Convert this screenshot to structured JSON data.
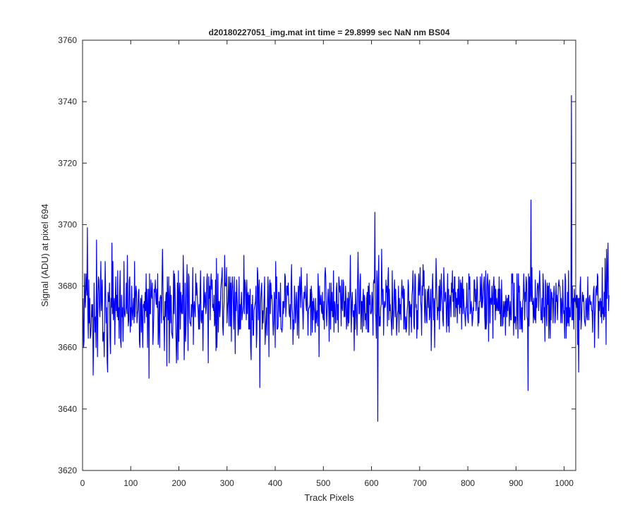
{
  "chart_data": {
    "type": "line",
    "title": "d20180227051_img.mat int time = 29.8999 sec  NaN nm BS04",
    "xlabel": "Track Pixels",
    "ylabel": "Signal (ADU) at pixel 694",
    "xlim": [
      0,
      1024
    ],
    "ylim": [
      3620,
      3760
    ],
    "xticks": [
      0,
      100,
      200,
      300,
      400,
      500,
      600,
      700,
      800,
      900,
      1000
    ],
    "yticks": [
      3620,
      3640,
      3660,
      3680,
      3700,
      3720,
      3740,
      3760
    ],
    "grid": false,
    "color": "#0000ff",
    "series": [
      {
        "x_start": 1,
        "x_step": 1,
        "values": [
          3676,
          3660,
          3662,
          3684,
          3676,
          3673,
          3684,
          3680,
          3677,
          3699,
          3671,
          3663,
          3682,
          3668,
          3676,
          3663,
          3664,
          3667,
          3674,
          3670,
          3674,
          3651,
          3662,
          3681,
          3670,
          3665,
          3670,
          3660,
          3695,
          3671,
          3657,
          3677,
          3683,
          3682,
          3673,
          3670,
          3678,
          3688,
          3672,
          3677,
          3682,
          3662,
          3663,
          3665,
          3657,
          3673,
          3688,
          3677,
          3668,
          3673,
          3656,
          3652,
          3678,
          3675,
          3675,
          3681,
          3663,
          3658,
          3676,
          3673,
          3694,
          3671,
          3688,
          3669,
          3674,
          3676,
          3661,
          3675,
          3683,
          3672,
          3677,
          3670,
          3685,
          3669,
          3673,
          3663,
          3678,
          3685,
          3662,
          3660,
          3677,
          3670,
          3673,
          3662,
          3670,
          3688,
          3671,
          3670,
          3672,
          3673,
          3681,
          3671,
          3690,
          3673,
          3667,
          3669,
          3682,
          3683,
          3665,
          3673,
          3667,
          3680,
          3672,
          3669,
          3673,
          3676,
          3668,
          3688,
          3670,
          3676,
          3680,
          3678,
          3668,
          3671,
          3672,
          3678,
          3679,
          3662,
          3660,
          3674,
          3676,
          3665,
          3677,
          3668,
          3660,
          3674,
          3673,
          3675,
          3668,
          3678,
          3672,
          3684,
          3670,
          3679,
          3660,
          3674,
          3679,
          3650,
          3684,
          3671,
          3671,
          3682,
          3677,
          3676,
          3681,
          3661,
          3665,
          3672,
          3679,
          3678,
          3682,
          3676,
          3674,
          3679,
          3673,
          3684,
          3661,
          3666,
          3675,
          3660,
          3676,
          3677,
          3676,
          3668,
          3682,
          3692,
          3680,
          3669,
          3670,
          3659,
          3675,
          3670,
          3677,
          3678,
          3654,
          3683,
          3676,
          3669,
          3683,
          3655,
          3676,
          3680,
          3668,
          3677,
          3665,
          3664,
          3663,
          3670,
          3685,
          3671,
          3684,
          3679,
          3670,
          3663,
          3655,
          3665,
          3681,
          3656,
          3685,
          3662,
          3678,
          3681,
          3666,
          3678,
          3672,
          3671,
          3677,
          3671,
          3690,
          3680,
          3656,
          3664,
          3681,
          3662,
          3668,
          3678,
          3687,
          3673,
          3659,
          3684,
          3683,
          3670,
          3668,
          3668,
          3667,
          3674,
          3670,
          3675,
          3686,
          3661,
          3673,
          3675,
          3672,
          3670,
          3684,
          3677,
          3681,
          3678,
          3674,
          3672,
          3666,
          3674,
          3666,
          3678,
          3685,
          3669,
          3668,
          3672,
          3672,
          3659,
          3672,
          3683,
          3673,
          3676,
          3678,
          3671,
          3673,
          3682,
          3684,
          3673,
          3655,
          3683,
          3676,
          3680,
          3669,
          3681,
          3684,
          3679,
          3682,
          3673,
          3674,
          3672,
          3677,
          3667,
          3668,
          3682,
          3659,
          3689,
          3660,
          3670,
          3684,
          3665,
          3675,
          3675,
          3670,
          3673,
          3679,
          3681,
          3683,
          3686,
          3667,
          3664,
          3672,
          3675,
          3690,
          3680,
          3681,
          3680,
          3686,
          3668,
          3673,
          3675,
          3683,
          3667,
          3678,
          3683,
          3667,
          3681,
          3662,
          3678,
          3683,
          3680,
          3673,
          3666,
          3683,
          3672,
          3658,
          3678,
          3672,
          3682,
          3676,
          3672,
          3664,
          3666,
          3683,
          3666,
          3674,
          3666,
          3674,
          3678,
          3669,
          3671,
          3672,
          3674,
          3690,
          3671,
          3682,
          3681,
          3677,
          3669,
          3682,
          3671,
          3677,
          3678,
          3666,
          3677,
          3666,
          3679,
          3660,
          3656,
          3674,
          3669,
          3677,
          3664,
          3664,
          3672,
          3673,
          3674,
          3675,
          3680,
          3660,
          3665,
          3686,
          3684,
          3669,
          3679,
          3682,
          3647,
          3671,
          3676,
          3679,
          3681,
          3666,
          3672,
          3668,
          3672,
          3677,
          3683,
          3661,
          3665,
          3669,
          3673,
          3664,
          3675,
          3683,
          3673,
          3657,
          3680,
          3682,
          3671,
          3681,
          3676,
          3677,
          3674,
          3669,
          3664,
          3668,
          3678,
          3673,
          3660,
          3688,
          3676,
          3683,
          3666,
          3666,
          3667,
          3678,
          3678,
          3672,
          3670,
          3681,
          3666,
          3666,
          3665,
          3667,
          3675,
          3671,
          3675,
          3673,
          3684,
          3683,
          3670,
          3674,
          3680,
          3680,
          3677,
          3681,
          3676,
          3671,
          3670,
          3674,
          3666,
          3680,
          3687,
          3673,
          3671,
          3661,
          3669,
          3666,
          3680,
          3676,
          3668,
          3671,
          3678,
          3675,
          3664,
          3671,
          3680,
          3663,
          3680,
          3683,
          3678,
          3673,
          3686,
          3679,
          3676,
          3672,
          3666,
          3674,
          3678,
          3676,
          3680,
          3677,
          3674,
          3672,
          3684,
          3674,
          3664,
          3672,
          3673,
          3673,
          3674,
          3679,
          3664,
          3680,
          3677,
          3665,
          3675,
          3669,
          3676,
          3673,
          3671,
          3665,
          3676,
          3668,
          3671,
          3672,
          3667,
          3684,
          3678,
          3657,
          3680,
          3674,
          3674,
          3677,
          3672,
          3671,
          3678,
          3670,
          3669,
          3675,
          3666,
          3683,
          3686,
          3683,
          3673,
          3667,
          3672,
          3675,
          3679,
          3674,
          3662,
          3681,
          3673,
          3666,
          3681,
          3672,
          3678,
          3670,
          3670,
          3685,
          3665,
          3675,
          3674,
          3668,
          3668,
          3679,
          3681,
          3669,
          3674,
          3665,
          3683,
          3681,
          3678,
          3680,
          3675,
          3667,
          3682,
          3673,
          3672,
          3682,
          3681,
          3670,
          3675,
          3670,
          3680,
          3676,
          3666,
          3670,
          3676,
          3667,
          3678,
          3668,
          3675,
          3677,
          3690,
          3673,
          3665,
          3675,
          3678,
          3672,
          3670,
          3672,
          3659,
          3674,
          3666,
          3679,
          3674,
          3668,
          3664,
          3681,
          3691,
          3680,
          3671,
          3671,
          3681,
          3684,
          3666,
          3675,
          3675,
          3665,
          3676,
          3679,
          3667,
          3677,
          3676,
          3669,
          3671,
          3666,
          3676,
          3678,
          3665,
          3680,
          3665,
          3681,
          3674,
          3677,
          3671,
          3671,
          3672,
          3678,
          3675,
          3664,
          3681,
          3682,
          3681,
          3704,
          3671,
          3670,
          3663,
          3685,
          3680,
          3636,
          3682,
          3690,
          3667,
          3670,
          3667,
          3673,
          3674,
          3692,
          3679,
          3674,
          3679,
          3664,
          3673,
          3675,
          3673,
          3674,
          3682,
          3678,
          3680,
          3667,
          3682,
          3686,
          3669,
          3679,
          3672,
          3674,
          3670,
          3668,
          3664,
          3685,
          3672,
          3666,
          3672,
          3678,
          3682,
          3670,
          3679,
          3674,
          3664,
          3668,
          3671,
          3672,
          3680,
          3665,
          3676,
          3671,
          3674,
          3669,
          3677,
          3682,
          3677,
          3676,
          3680,
          3666,
          3679,
          3670,
          3666,
          3670,
          3665,
          3667,
          3672,
          3674,
          3682,
          3680,
          3664,
          3675,
          3673,
          3670,
          3674,
          3665,
          3677,
          3679,
          3685,
          3678,
          3667,
          3666,
          3684,
          3683,
          3673,
          3674,
          3663,
          3672,
          3666,
          3679,
          3684,
          3677,
          3679,
          3686,
          3675,
          3673,
          3664,
          3680,
          3677,
          3687,
          3680,
          3685,
          3672,
          3668,
          3679,
          3674,
          3669,
          3668,
          3678,
          3679,
          3673,
          3680,
          3669,
          3670,
          3675,
          3679,
          3659,
          3669,
          3679,
          3684,
          3675,
          3669,
          3676,
          3660,
          3675,
          3676,
          3689,
          3681,
          3675,
          3669,
          3673,
          3672,
          3680,
          3666,
          3682,
          3672,
          3677,
          3684,
          3677,
          3674,
          3669,
          3667,
          3686,
          3681,
          3675,
          3677,
          3678,
          3673,
          3665,
          3675,
          3684,
          3667,
          3679,
          3665,
          3673,
          3677,
          3676,
          3670,
          3681,
          3678,
          3685,
          3675,
          3679,
          3670,
          3683,
          3683,
          3670,
          3678,
          3673,
          3676,
          3668,
          3679,
          3674,
          3683,
          3674,
          3671,
          3682,
          3673,
          3681,
          3666,
          3680,
          3683,
          3671,
          3679,
          3674,
          3672,
          3670,
          3667,
          3673,
          3673,
          3681,
          3672,
          3669,
          3668,
          3684,
          3679,
          3683,
          3671,
          3672,
          3675,
          3672,
          3667,
          3669,
          3673,
          3672,
          3682,
          3682,
          3675,
          3679,
          3672,
          3675,
          3683,
          3679,
          3667,
          3673,
          3668,
          3675,
          3675,
          3683,
          3678,
          3673,
          3684,
          3673,
          3675,
          3677,
          3681,
          3683,
          3670,
          3666,
          3685,
          3666,
          3668,
          3680,
          3684,
          3680,
          3662,
          3680,
          3682,
          3668,
          3676,
          3676,
          3674,
          3680,
          3676,
          3663,
          3680,
          3683,
          3674,
          3680,
          3669,
          3679,
          3672,
          3676,
          3673,
          3672,
          3679,
          3672,
          3683,
          3671,
          3679,
          3667,
          3667,
          3682,
          3675,
          3667,
          3668,
          3675,
          3670,
          3673,
          3675,
          3664,
          3677,
          3675,
          3670,
          3676,
          3672,
          3677,
          3677,
          3667,
          3672,
          3675,
          3669,
          3669,
          3684,
          3681,
          3684,
          3674,
          3664,
          3681,
          3668,
          3670,
          3670,
          3666,
          3670,
          3684,
          3672,
          3663,
          3684,
          3678,
          3680,
          3666,
          3675,
          3672,
          3666,
          3673,
          3665,
          3675,
          3676,
          3684,
          3679,
          3669,
          3678,
          3675,
          3683,
          3681,
          3670,
          3669,
          3646,
          3684,
          3667,
          3683,
          3675,
          3677,
          3708,
          3675,
          3686,
          3674,
          3675,
          3668,
          3676,
          3670,
          3669,
          3682,
          3668,
          3676,
          3673,
          3679,
          3681,
          3680,
          3672,
          3680,
          3685,
          3680,
          3674,
          3669,
          3669,
          3676,
          3668,
          3684,
          3680,
          3670,
          3673,
          3662,
          3682,
          3680,
          3670,
          3667,
          3681,
          3674,
          3680,
          3663,
          3681,
          3669,
          3663,
          3679,
          3669,
          3678,
          3676,
          3676,
          3668,
          3677,
          3680,
          3677,
          3668,
          3671,
          3681,
          3675,
          3677,
          3669,
          3675,
          3680,
          3682,
          3680,
          3680,
          3677,
          3668,
          3676,
          3673,
          3668,
          3682,
          3675,
          3671,
          3672,
          3663,
          3684,
          3682,
          3663,
          3673,
          3667,
          3678,
          3668,
          3685,
          3667,
          3673,
          3670,
          3670,
          3675,
          3742,
          3669,
          3680,
          3669,
          3676,
          3666,
          3679,
          3675,
          3676,
          3674,
          3677,
          3673,
          3677,
          3661,
          3676,
          3652,
          3676,
          3669,
          3680,
          3683,
          3666,
          3669,
          3674,
          3678,
          3675,
          3677,
          3675,
          3669,
          3668,
          3667,
          3675,
          3676,
          3670,
          3669,
          3683,
          3673,
          3669,
          3676,
          3677,
          3674,
          3674,
          3675,
          3672,
          3672,
          3665,
          3675,
          3679,
          3680,
          3660,
          3670,
          3674,
          3679,
          3680,
          3677,
          3684,
          3683,
          3663,
          3675,
          3672,
          3675,
          3676,
          3670,
          3675,
          3668,
          3686,
          3671,
          3673,
          3669,
          3678,
          3670,
          3689,
          3679,
          3661,
          3692,
          3676,
          3684,
          3694,
          3672,
          3677
        ]
      }
    ]
  }
}
